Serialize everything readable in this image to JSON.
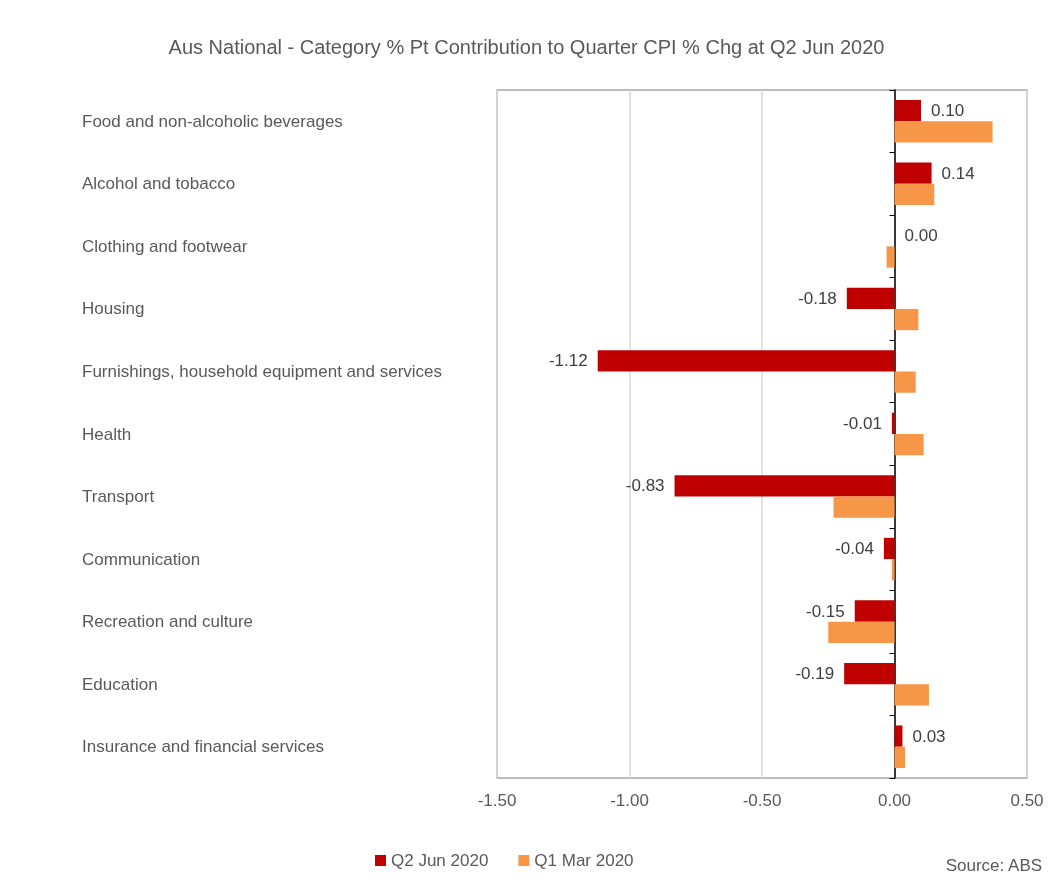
{
  "chart_data": {
    "type": "bar",
    "orientation": "horizontal",
    "title": "Aus National - Category % Pt Contribution to Quarter CPI % Chg at Q2 Jun 2020",
    "categories": [
      "Food and non-alcoholic beverages",
      "Alcohol and tobacco",
      "Clothing and footwear",
      "Housing",
      "Furnishings, household equipment and services",
      "Health",
      "Transport",
      "Communication",
      "Recreation and culture",
      "Education",
      "Insurance and financial services"
    ],
    "series": [
      {
        "name": "Q2 Jun 2020",
        "color": "#c00000",
        "values": [
          0.1,
          0.14,
          0.0,
          -0.18,
          -1.12,
          -0.01,
          -0.83,
          -0.04,
          -0.15,
          -0.19,
          0.03
        ],
        "value_labels": [
          "0.10",
          "0.14",
          "0.00",
          "-0.18",
          "-1.12",
          "-0.01",
          "-0.83",
          "-0.04",
          "-0.15",
          "-0.19",
          "0.03"
        ]
      },
      {
        "name": "Q1 Mar 2020",
        "color": "#f79646",
        "values": [
          0.37,
          0.15,
          -0.03,
          0.09,
          0.08,
          0.11,
          -0.23,
          -0.01,
          -0.25,
          0.13,
          0.04
        ]
      }
    ],
    "xlim": [
      -1.5,
      0.5
    ],
    "xticks": [
      {
        "value": -1.5,
        "label": "-1.50"
      },
      {
        "value": -1,
        "label": "-1.00"
      },
      {
        "value": -0.5,
        "label": "-0.50"
      },
      {
        "value": 0,
        "label": "0.00"
      },
      {
        "value": 0.5,
        "label": "0.50"
      }
    ],
    "grid": "x",
    "legend": "bottom",
    "annotations": [
      "Source: ABS"
    ]
  }
}
